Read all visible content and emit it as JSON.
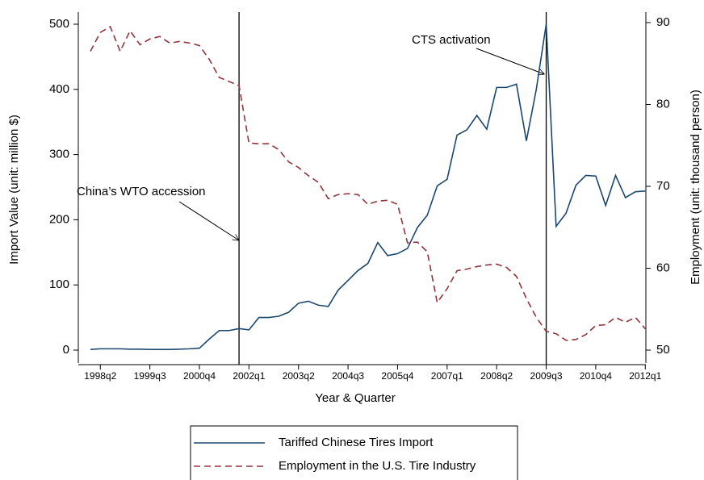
{
  "chart_data": {
    "type": "line",
    "xlabel": "Year & Quarter",
    "ylabel": "Import Value (unit: million $)",
    "y2label": "Employment (unit: thousand person)",
    "categories": [
      null,
      "1998q2",
      null,
      null,
      null,
      null,
      "1999q3",
      null,
      null,
      null,
      null,
      "2000q4",
      null,
      null,
      null,
      null,
      "2002q1",
      null,
      null,
      null,
      null,
      "2003q2",
      null,
      null,
      null,
      null,
      "2004q3",
      null,
      null,
      null,
      null,
      "2005q4",
      null,
      null,
      null,
      null,
      "2007q1",
      null,
      null,
      null,
      null,
      "2008q2",
      null,
      null,
      null,
      null,
      "2009q3",
      null,
      null,
      null,
      null,
      "2010q4",
      null,
      null,
      null,
      null,
      "2012q1"
    ],
    "series": [
      {
        "name": "Tariffed Chinese Tires Import",
        "color": "#1a476f",
        "dash": false,
        "values": [
          1,
          2,
          2,
          2,
          1.5,
          1.5,
          1,
          1,
          1,
          1.5,
          2,
          3,
          17,
          30,
          30,
          33,
          31,
          50,
          50,
          52,
          58,
          72,
          75,
          69,
          67,
          92,
          107,
          122,
          133,
          165,
          145,
          148,
          156,
          188,
          207,
          252,
          262,
          330,
          338,
          360,
          339,
          403,
          403,
          408,
          321,
          400,
          500,
          190,
          210,
          253,
          268,
          267,
          222,
          268,
          234,
          243,
          244
        ]
      },
      {
        "name": "Employment in the U.S. Tire Industry",
        "color": "#90353b",
        "dash": true,
        "axis": "y2",
        "values": [
          86.5,
          88.8,
          89.5,
          86.5,
          89,
          87.3,
          88,
          88.3,
          87.5,
          87.7,
          87.5,
          87.2,
          85.5,
          83.3,
          82.8,
          82.3,
          75.3,
          75.2,
          75.2,
          74.5,
          73,
          72.3,
          71.3,
          70.5,
          68.5,
          69,
          69.1,
          69,
          67.8,
          68.2,
          68.3,
          67.8,
          63.1,
          63.2,
          62,
          55.8,
          57.5,
          59.7,
          59.9,
          60.2,
          60.4,
          60.5,
          60.1,
          59,
          56.3,
          54,
          52.3,
          52,
          51.2,
          51.3,
          51.9,
          53,
          53.1,
          54,
          53.4,
          54,
          52.6
        ]
      }
    ],
    "ylim": [
      0,
      500
    ],
    "yticks": [
      0,
      100,
      200,
      300,
      400,
      500
    ],
    "y2lim": [
      50,
      90
    ],
    "y2ticks": [
      50,
      60,
      70,
      80,
      90
    ],
    "annotations": [
      {
        "text": "China’s WTO accession",
        "x": 15
      },
      {
        "text": "CTS activation",
        "x": 46
      }
    ]
  }
}
